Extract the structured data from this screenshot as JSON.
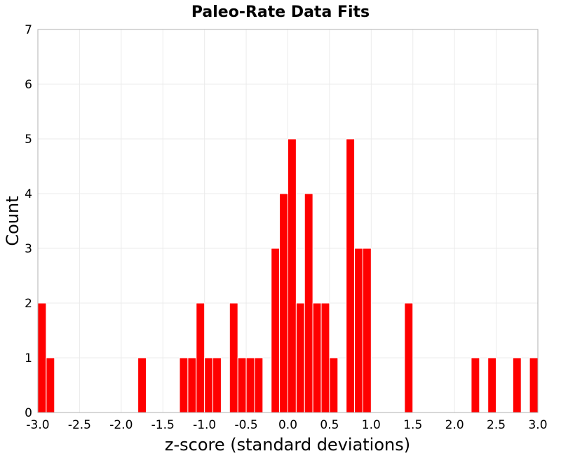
{
  "chart_data": {
    "type": "bar",
    "title": "Paleo-Rate Data Fits",
    "xlabel": "z-score (standard deviations)",
    "ylabel": "Count",
    "xlim": [
      -3.0,
      3.0
    ],
    "ylim": [
      0,
      7
    ],
    "bin_width": 0.1,
    "x_ticks": [
      "-3.0",
      "-2.5",
      "-2.0",
      "-1.5",
      "-1.0",
      "-0.5",
      "0.0",
      "0.5",
      "1.0",
      "1.5",
      "2.0",
      "2.5",
      "3.0"
    ],
    "y_ticks": [
      "0",
      "1",
      "2",
      "3",
      "4",
      "5",
      "6",
      "7"
    ],
    "grid": true,
    "bar_color": "#ff0000",
    "bins": [
      {
        "x0": -3.0,
        "x1": -2.9,
        "count": 2
      },
      {
        "x0": -2.9,
        "x1": -2.8,
        "count": 1
      },
      {
        "x0": -1.8,
        "x1": -1.7,
        "count": 1
      },
      {
        "x0": -1.3,
        "x1": -1.2,
        "count": 1
      },
      {
        "x0": -1.2,
        "x1": -1.1,
        "count": 1
      },
      {
        "x0": -1.1,
        "x1": -1.0,
        "count": 2
      },
      {
        "x0": -1.0,
        "x1": -0.9,
        "count": 1
      },
      {
        "x0": -0.9,
        "x1": -0.8,
        "count": 1
      },
      {
        "x0": -0.7,
        "x1": -0.6,
        "count": 2
      },
      {
        "x0": -0.6,
        "x1": -0.5,
        "count": 1
      },
      {
        "x0": -0.5,
        "x1": -0.4,
        "count": 1
      },
      {
        "x0": -0.4,
        "x1": -0.3,
        "count": 1
      },
      {
        "x0": -0.2,
        "x1": -0.1,
        "count": 3
      },
      {
        "x0": -0.1,
        "x1": 0.0,
        "count": 4
      },
      {
        "x0": 0.0,
        "x1": 0.1,
        "count": 5
      },
      {
        "x0": 0.1,
        "x1": 0.2,
        "count": 2
      },
      {
        "x0": 0.2,
        "x1": 0.3,
        "count": 4
      },
      {
        "x0": 0.3,
        "x1": 0.4,
        "count": 2
      },
      {
        "x0": 0.4,
        "x1": 0.5,
        "count": 2
      },
      {
        "x0": 0.5,
        "x1": 0.6,
        "count": 1
      },
      {
        "x0": 0.7,
        "x1": 0.8,
        "count": 5
      },
      {
        "x0": 0.8,
        "x1": 0.9,
        "count": 3
      },
      {
        "x0": 0.9,
        "x1": 1.0,
        "count": 3
      },
      {
        "x0": 1.4,
        "x1": 1.5,
        "count": 2
      },
      {
        "x0": 2.2,
        "x1": 2.3,
        "count": 1
      },
      {
        "x0": 2.4,
        "x1": 2.5,
        "count": 1
      },
      {
        "x0": 2.7,
        "x1": 2.8,
        "count": 1
      },
      {
        "x0": 2.9,
        "x1": 3.0,
        "count": 1
      }
    ]
  }
}
